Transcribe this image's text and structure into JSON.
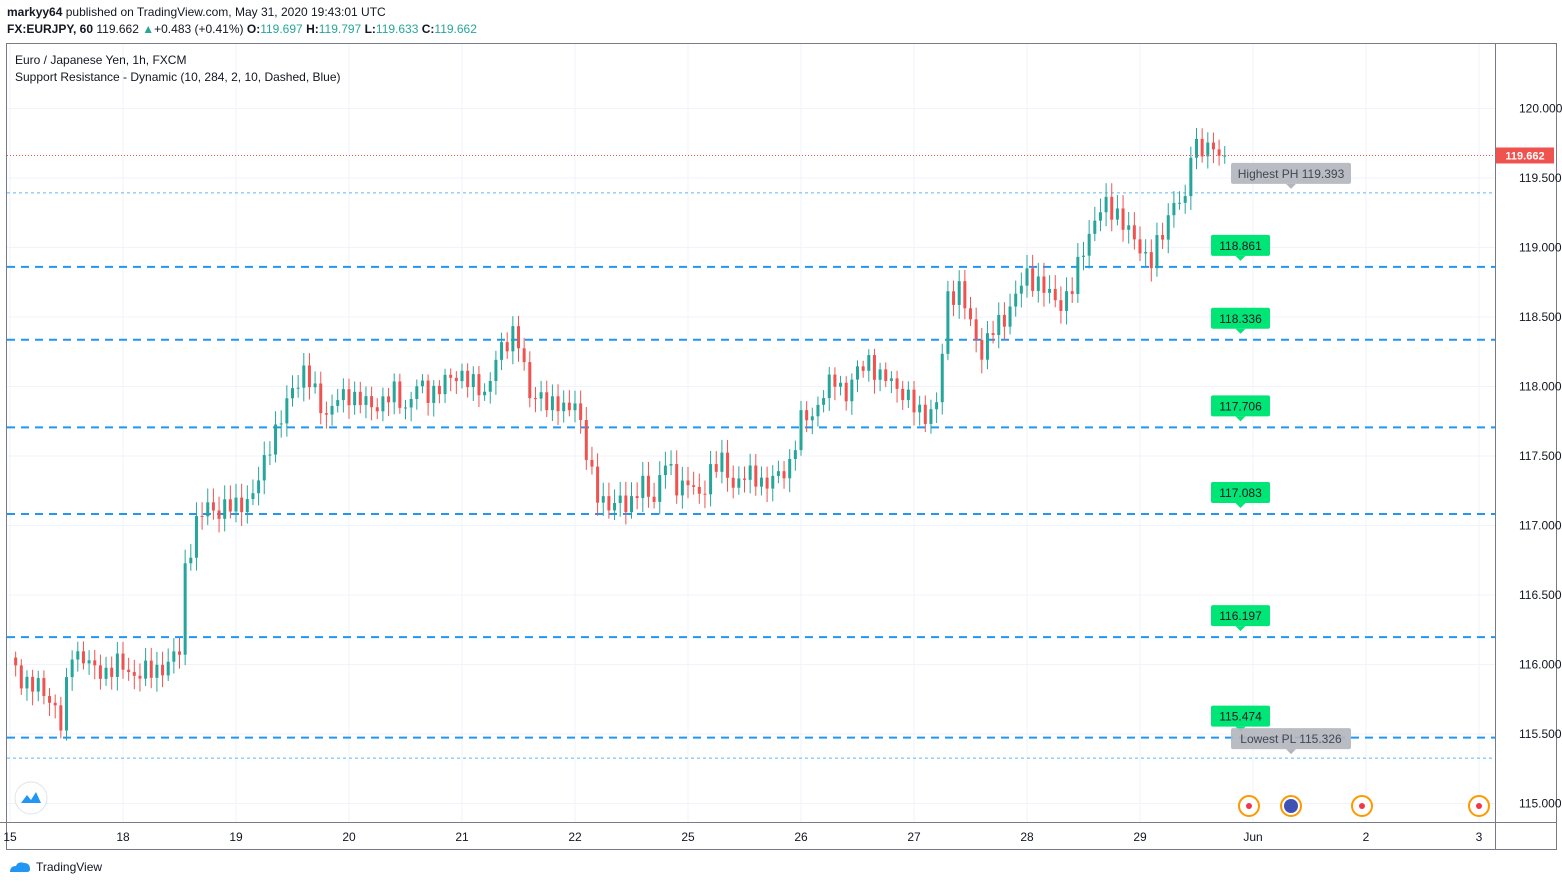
{
  "header": {
    "publisher": "markyy64",
    "published_text": "published on TradingView.com, May 31, 2020 19:43:01 UTC",
    "symbol": "FX:EURJPY, 60",
    "last": "119.662",
    "change_arrow": "▲",
    "change": "+0.483 (+0.41%)",
    "o_label": "O:",
    "o": "119.697",
    "h_label": "H:",
    "h": "119.797",
    "l_label": "L:",
    "l": "119.633",
    "c_label": "C:",
    "c": "119.662"
  },
  "legend": {
    "title": "Euro / Japanese Yen, 1h, FXCM",
    "indicator": "Support Resistance - Dynamic (10, 284, 2, 10, Dashed, Blue)"
  },
  "footer": {
    "brand": "TradingView"
  },
  "colors": {
    "up": "#26a69a",
    "down": "#ef5350",
    "level": "#2196f3",
    "label_green": "#00e676",
    "label_gray": "#b2b5be",
    "price_tag": "#ef5350"
  },
  "chart_data": {
    "type": "candlestick",
    "title": "Euro / Japanese Yen, 1h, FXCM",
    "ylim": [
      114.85,
      120.5
    ],
    "y_ticks": [
      "115.000",
      "115.500",
      "116.000",
      "116.500",
      "117.000",
      "117.500",
      "118.000",
      "118.500",
      "119.000",
      "119.500",
      "120.000"
    ],
    "x_ticks": [
      {
        "label": "15",
        "i": 0
      },
      {
        "label": "18",
        "i": 20
      },
      {
        "label": "19",
        "i": 40
      },
      {
        "label": "20",
        "i": 60
      },
      {
        "label": "21",
        "i": 80
      },
      {
        "label": "22",
        "i": 100
      },
      {
        "label": "25",
        "i": 120
      },
      {
        "label": "26",
        "i": 140
      },
      {
        "label": "27",
        "i": 160
      },
      {
        "label": "28",
        "i": 180
      },
      {
        "label": "29",
        "i": 200
      },
      {
        "label": "Jun",
        "i": 220
      },
      {
        "label": "2",
        "i": 240
      },
      {
        "label": "3",
        "i": 260
      }
    ],
    "current_price": "119.662",
    "current_value": 119.662,
    "levels": [
      {
        "value": 119.393,
        "label": "Highest PH 119.393",
        "kind": "highest"
      },
      {
        "value": 118.861,
        "label": "118.861",
        "kind": "support"
      },
      {
        "value": 118.336,
        "label": "118.336",
        "kind": "support"
      },
      {
        "value": 117.706,
        "label": "117.706",
        "kind": "support"
      },
      {
        "value": 117.083,
        "label": "117.083",
        "kind": "support"
      },
      {
        "value": 116.197,
        "label": "116.197",
        "kind": "support"
      },
      {
        "value": 115.474,
        "label": "115.474",
        "kind": "support"
      },
      {
        "value": 115.326,
        "label": "Lowest PL 115.326",
        "kind": "lowest"
      }
    ],
    "series": [
      {
        "name": "FX:EURJPY",
        "anchors": [
          [
            0,
            116.02
          ],
          [
            2,
            115.9
          ],
          [
            4,
            115.85
          ],
          [
            6,
            115.8
          ],
          [
            8,
            115.7
          ],
          [
            9,
            115.55
          ],
          [
            11,
            116.1
          ],
          [
            13,
            116.05
          ],
          [
            15,
            115.95
          ],
          [
            17,
            115.95
          ],
          [
            19,
            116.0
          ],
          [
            22,
            115.93
          ],
          [
            25,
            115.95
          ],
          [
            28,
            116.0
          ],
          [
            30,
            116.1
          ],
          [
            31,
            116.7
          ],
          [
            33,
            117.0
          ],
          [
            35,
            117.15
          ],
          [
            37,
            117.1
          ],
          [
            40,
            117.15
          ],
          [
            43,
            117.2
          ],
          [
            46,
            117.6
          ],
          [
            48,
            117.75
          ],
          [
            50,
            118.0
          ],
          [
            52,
            118.1
          ],
          [
            54,
            117.95
          ],
          [
            56,
            117.8
          ],
          [
            58,
            117.9
          ],
          [
            60,
            117.95
          ],
          [
            62,
            117.9
          ],
          [
            64,
            117.85
          ],
          [
            66,
            117.9
          ],
          [
            68,
            117.95
          ],
          [
            70,
            117.85
          ],
          [
            72,
            118.0
          ],
          [
            74,
            117.95
          ],
          [
            76,
            118.0
          ],
          [
            78,
            118.05
          ],
          [
            80,
            118.1
          ],
          [
            82,
            118.0
          ],
          [
            84,
            117.95
          ],
          [
            86,
            118.2
          ],
          [
            88,
            118.3
          ],
          [
            89,
            118.4
          ],
          [
            90,
            118.35
          ],
          [
            92,
            117.9
          ],
          [
            94,
            117.95
          ],
          [
            96,
            117.85
          ],
          [
            98,
            117.85
          ],
          [
            100,
            117.9
          ],
          [
            102,
            117.5
          ],
          [
            104,
            117.25
          ],
          [
            106,
            117.1
          ],
          [
            108,
            117.2
          ],
          [
            110,
            117.15
          ],
          [
            112,
            117.3
          ],
          [
            114,
            117.2
          ],
          [
            116,
            117.45
          ],
          [
            118,
            117.3
          ],
          [
            120,
            117.3
          ],
          [
            122,
            117.2
          ],
          [
            124,
            117.4
          ],
          [
            126,
            117.45
          ],
          [
            128,
            117.3
          ],
          [
            130,
            117.35
          ],
          [
            132,
            117.35
          ],
          [
            134,
            117.3
          ],
          [
            136,
            117.35
          ],
          [
            138,
            117.45
          ],
          [
            140,
            117.75
          ],
          [
            142,
            117.8
          ],
          [
            144,
            117.95
          ],
          [
            146,
            118.05
          ],
          [
            148,
            117.95
          ],
          [
            150,
            118.1
          ],
          [
            152,
            118.2
          ],
          [
            154,
            118.05
          ],
          [
            156,
            118.05
          ],
          [
            158,
            117.95
          ],
          [
            160,
            117.85
          ],
          [
            162,
            117.8
          ],
          [
            164,
            117.85
          ],
          [
            166,
            118.65
          ],
          [
            168,
            118.7
          ],
          [
            170,
            118.45
          ],
          [
            172,
            118.25
          ],
          [
            174,
            118.4
          ],
          [
            176,
            118.5
          ],
          [
            178,
            118.65
          ],
          [
            180,
            118.8
          ],
          [
            182,
            118.75
          ],
          [
            184,
            118.65
          ],
          [
            186,
            118.6
          ],
          [
            188,
            118.7
          ],
          [
            190,
            119.0
          ],
          [
            192,
            119.2
          ],
          [
            194,
            119.3
          ],
          [
            196,
            119.25
          ],
          [
            198,
            119.1
          ],
          [
            200,
            119.0
          ],
          [
            202,
            118.9
          ],
          [
            204,
            119.1
          ],
          [
            206,
            119.35
          ],
          [
            208,
            119.3
          ],
          [
            209,
            119.7
          ],
          [
            210,
            119.75
          ],
          [
            212,
            119.7
          ],
          [
            214,
            119.68
          ],
          [
            215,
            119.662
          ]
        ]
      }
    ]
  }
}
